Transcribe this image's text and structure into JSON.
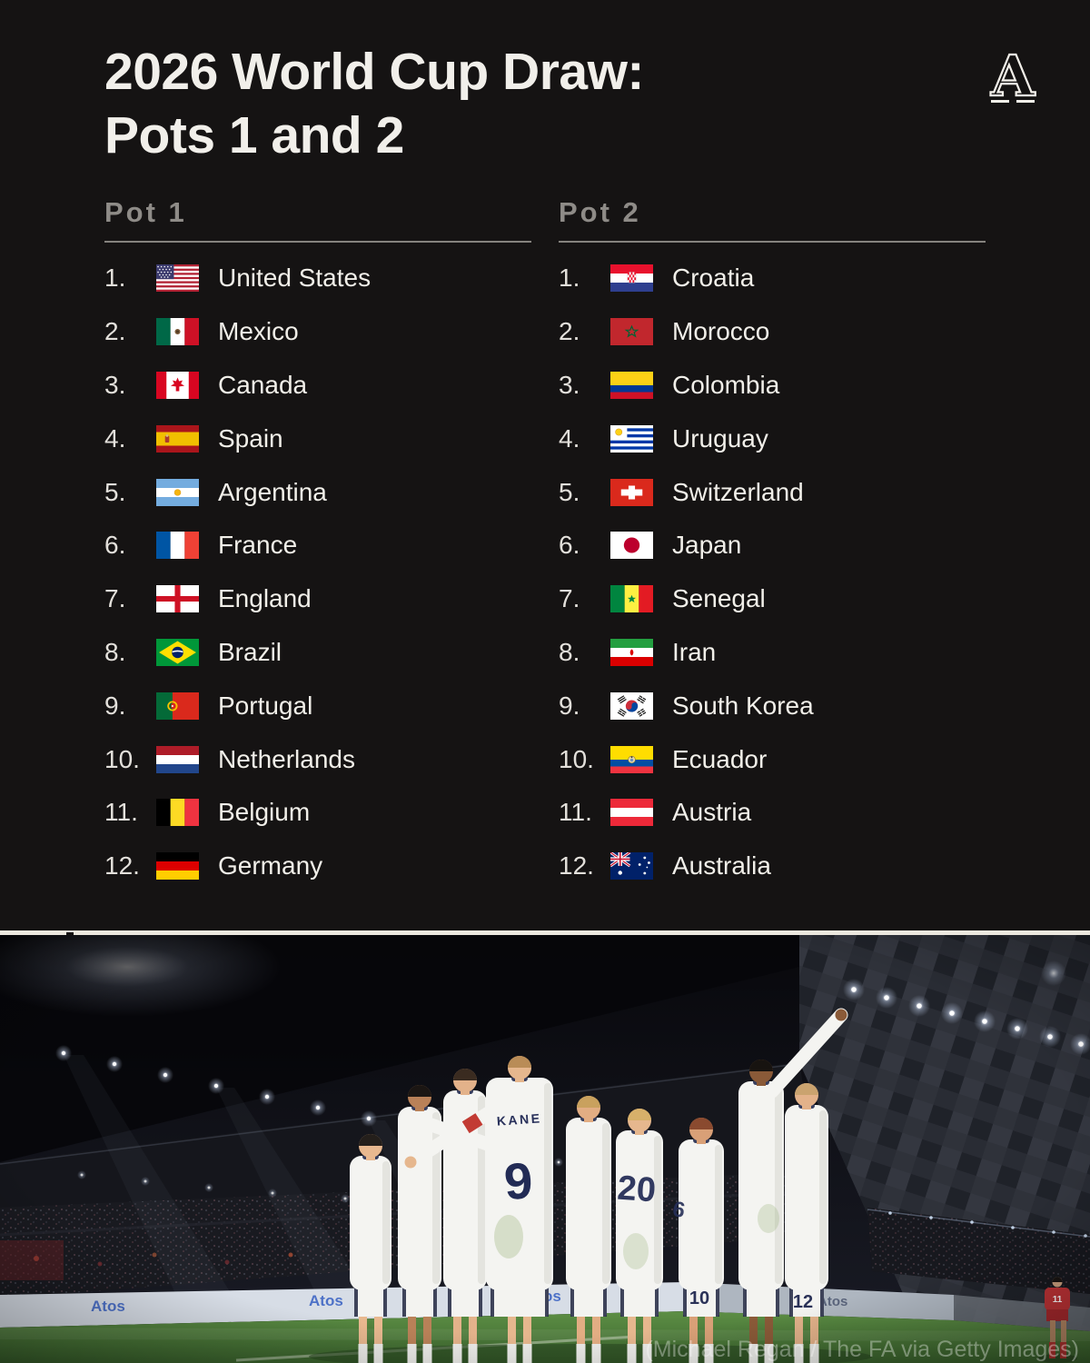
{
  "header": {
    "title_line1": "2026 World Cup Draw:",
    "title_line2": "Pots 1 and 2",
    "logo_letter": "A"
  },
  "pots": [
    {
      "label": "Pot 1",
      "teams": [
        {
          "rank": "1.",
          "name": "United States",
          "flag": "us"
        },
        {
          "rank": "2.",
          "name": "Mexico",
          "flag": "mx"
        },
        {
          "rank": "3.",
          "name": "Canada",
          "flag": "ca"
        },
        {
          "rank": "4.",
          "name": "Spain",
          "flag": "es"
        },
        {
          "rank": "5.",
          "name": "Argentina",
          "flag": "ar"
        },
        {
          "rank": "6.",
          "name": "France",
          "flag": "fr"
        },
        {
          "rank": "7.",
          "name": "England",
          "flag": "eng"
        },
        {
          "rank": "8.",
          "name": "Brazil",
          "flag": "br"
        },
        {
          "rank": "9.",
          "name": "Portugal",
          "flag": "pt"
        },
        {
          "rank": "10.",
          "name": "Netherlands",
          "flag": "nl"
        },
        {
          "rank": "11.",
          "name": "Belgium",
          "flag": "be"
        },
        {
          "rank": "12.",
          "name": "Germany",
          "flag": "de"
        }
      ]
    },
    {
      "label": "Pot 2",
      "teams": [
        {
          "rank": "1.",
          "name": "Croatia",
          "flag": "hr"
        },
        {
          "rank": "2.",
          "name": "Morocco",
          "flag": "ma"
        },
        {
          "rank": "3.",
          "name": "Colombia",
          "flag": "co"
        },
        {
          "rank": "4.",
          "name": "Uruguay",
          "flag": "uy"
        },
        {
          "rank": "5.",
          "name": "Switzerland",
          "flag": "ch"
        },
        {
          "rank": "6.",
          "name": "Japan",
          "flag": "jp"
        },
        {
          "rank": "7.",
          "name": "Senegal",
          "flag": "sn"
        },
        {
          "rank": "8.",
          "name": "Iran",
          "flag": "ir"
        },
        {
          "rank": "9.",
          "name": "South Korea",
          "flag": "kr"
        },
        {
          "rank": "10.",
          "name": "Ecuador",
          "flag": "ec"
        },
        {
          "rank": "11.",
          "name": "Austria",
          "flag": "at"
        },
        {
          "rank": "12.",
          "name": "Australia",
          "flag": "au"
        }
      ]
    }
  ],
  "photo": {
    "caption": "(Michael Regan / The FA via Getty Images)",
    "ad_text": "Atos",
    "jerseys": {
      "kane_name": "KANE",
      "kane_number": "9",
      "back_number": "20",
      "hidden_number": "6",
      "shorts_number_left": "10",
      "shorts_number_right": "12",
      "opponent_number": "11"
    }
  },
  "colors": {
    "background": "#141212",
    "text_primary": "#f1efea",
    "text_secondary": "#8e8b87",
    "separator": "#ece8df",
    "kit_navy": "#222b55",
    "pitch_green": "#4e7d3a"
  }
}
